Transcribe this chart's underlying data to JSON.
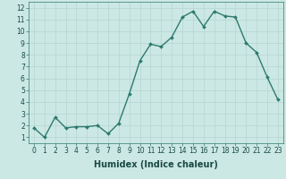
{
  "x": [
    0,
    1,
    2,
    3,
    4,
    5,
    6,
    7,
    8,
    9,
    10,
    11,
    12,
    13,
    14,
    15,
    16,
    17,
    18,
    19,
    20,
    21,
    22,
    23
  ],
  "y": [
    1.8,
    1.0,
    2.7,
    1.8,
    1.9,
    1.9,
    2.0,
    1.3,
    2.2,
    4.7,
    7.5,
    8.9,
    8.7,
    9.5,
    11.2,
    11.7,
    10.4,
    11.7,
    11.3,
    11.2,
    9.0,
    8.2,
    6.1,
    4.2
  ],
  "line_color": "#2d7a6e",
  "marker": "D",
  "markersize": 2.0,
  "linewidth": 1.0,
  "background_color": "#cce8e4",
  "grid_color": "#b8d8d4",
  "xlabel": "Humidex (Indice chaleur)",
  "xlim": [
    -0.5,
    23.5
  ],
  "ylim": [
    0.5,
    12.5
  ],
  "xticks": [
    0,
    1,
    2,
    3,
    4,
    5,
    6,
    7,
    8,
    9,
    10,
    11,
    12,
    13,
    14,
    15,
    16,
    17,
    18,
    19,
    20,
    21,
    22,
    23
  ],
  "yticks": [
    1,
    2,
    3,
    4,
    5,
    6,
    7,
    8,
    9,
    10,
    11,
    12
  ],
  "tick_fontsize": 5.5,
  "xlabel_fontsize": 7.0
}
